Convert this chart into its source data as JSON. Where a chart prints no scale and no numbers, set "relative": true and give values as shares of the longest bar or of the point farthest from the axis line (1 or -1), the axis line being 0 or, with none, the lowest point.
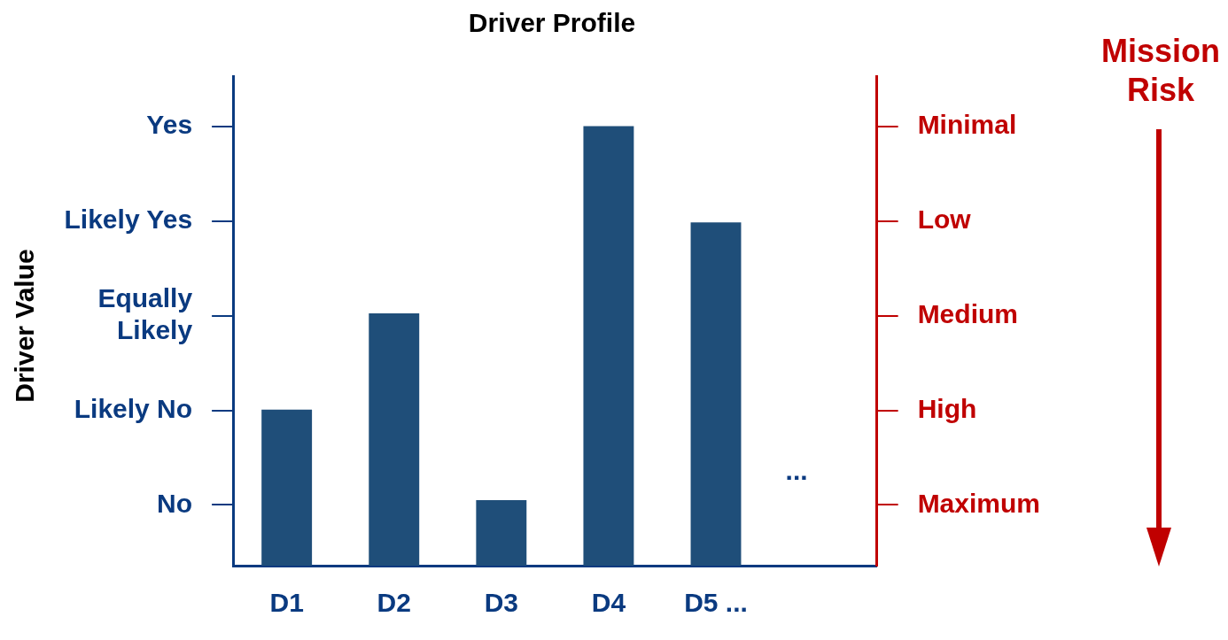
{
  "chart_data": {
    "type": "bar",
    "title": "Driver Profile",
    "categories": [
      "D1",
      "D2",
      "D3",
      "D4",
      "D5 ...",
      null
    ],
    "values": [
      0.355,
      0.574,
      0.149,
      1,
      0.781,
      null
    ],
    "color": "#1f4e79",
    "relative": true,
    "y_categories": [
      "Yes",
      "Likely Yes",
      "Equally\nLikely",
      "Likely No",
      "No"
    ],
    "y2_categories": [
      "Minimal",
      "Low",
      "Medium",
      "High",
      "Maximum"
    ],
    "annotations": [
      "Driver Value",
      "Mission Risk",
      "..."
    ],
    "grid": false,
    "legend": false
  }
}
